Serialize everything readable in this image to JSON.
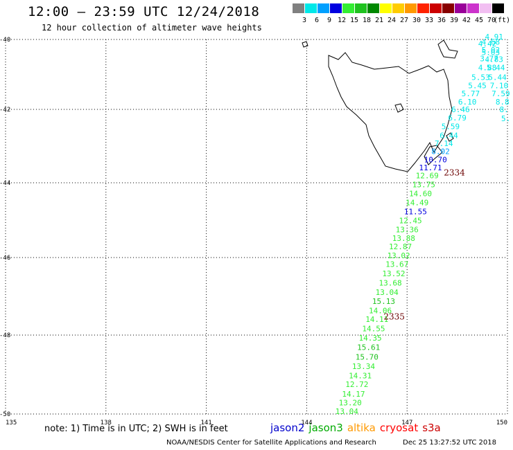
{
  "header": {
    "title": "12:00 – 23:59 UTC 12/24/2018",
    "subtitle": "12 hour collection of altimeter wave heights"
  },
  "legend": {
    "unit": "(ft)",
    "bins": [
      {
        "label": "3",
        "color": "#808080"
      },
      {
        "label": "6",
        "color": "#00e8e8"
      },
      {
        "label": "9",
        "color": "#00a0ff"
      },
      {
        "label": "12",
        "color": "#0000e0"
      },
      {
        "label": "15",
        "color": "#33ee33"
      },
      {
        "label": "18",
        "color": "#1fc21f"
      },
      {
        "label": "21",
        "color": "#008800"
      },
      {
        "label": "24",
        "color": "#ffff00"
      },
      {
        "label": "27",
        "color": "#ffcc00"
      },
      {
        "label": "30",
        "color": "#ff9900"
      },
      {
        "label": "33",
        "color": "#ff2200"
      },
      {
        "label": "36",
        "color": "#cc0000"
      },
      {
        "label": "39",
        "color": "#880000"
      },
      {
        "label": "42",
        "color": "#990099"
      },
      {
        "label": "45",
        "color": "#cc33cc"
      },
      {
        "label": "70",
        "color": "#f2bff2"
      },
      {
        "label": "",
        "color": "#000000"
      }
    ]
  },
  "axes": {
    "lat_labels": [
      "-40",
      "-42",
      "-44",
      "-46",
      "-48",
      "-50"
    ],
    "lon_labels": [
      "135",
      "138",
      "141",
      "144",
      "147",
      "150"
    ]
  },
  "passes": [
    {
      "id": "2334",
      "lat": -43.8,
      "lon": 148.1
    },
    {
      "id": "2335",
      "lat": -47.6,
      "lon": 146.3
    }
  ],
  "tracks": {
    "eastern": [
      {
        "v": "4.91",
        "lat": -39.98,
        "lon": 149.6,
        "c": "#00e8e8"
      },
      {
        "v": "4.68",
        "lat": -40.15,
        "lon": 149.5,
        "c": "#00e8e8"
      },
      {
        "v": "4.42",
        "lat": -40.2,
        "lon": 149.4,
        "c": "#00e8e8"
      },
      {
        "v": "5.02",
        "lat": -40.38,
        "lon": 149.5,
        "c": "#00e8e8"
      },
      {
        "v": "5.03",
        "lat": -40.45,
        "lon": 149.5,
        "c": "#00e8e8"
      },
      {
        "v": "3.77",
        "lat": -40.62,
        "lon": 149.45,
        "c": "#00e8e8"
      },
      {
        "v": "4.83",
        "lat": -40.64,
        "lon": 149.6,
        "c": "#00e8e8"
      },
      {
        "v": "4.88",
        "lat": -40.88,
        "lon": 149.4,
        "c": "#00e8e8"
      },
      {
        "v": "5.44",
        "lat": -40.88,
        "lon": 149.65,
        "c": "#00e8e8"
      },
      {
        "v": "5.53",
        "lat": -41.16,
        "lon": 149.2,
        "c": "#00e8e8"
      },
      {
        "v": "5.44",
        "lat": -41.16,
        "lon": 149.7,
        "c": "#00e8e8"
      },
      {
        "v": "5.45",
        "lat": -41.4,
        "lon": 149.1,
        "c": "#00e8e8"
      },
      {
        "v": "7.10",
        "lat": -41.4,
        "lon": 149.75,
        "c": "#00e8e8"
      },
      {
        "v": "5.77",
        "lat": -41.62,
        "lon": 148.9,
        "c": "#00e8e8"
      },
      {
        "v": "7.59",
        "lat": -41.62,
        "lon": 149.8,
        "c": "#00e8e8"
      },
      {
        "v": "6.10",
        "lat": -41.86,
        "lon": 148.8,
        "c": "#00e8e8"
      },
      {
        "v": "8.8",
        "lat": -41.86,
        "lon": 149.85,
        "c": "#00e8e8"
      },
      {
        "v": "6.46",
        "lat": -42.08,
        "lon": 148.6,
        "c": "#00e8e8"
      },
      {
        "v": "8.",
        "lat": -42.08,
        "lon": 149.9,
        "c": "#00e8e8"
      },
      {
        "v": "6.79",
        "lat": -42.3,
        "lon": 148.5,
        "c": "#00e8e8"
      },
      {
        "v": "5.",
        "lat": -42.32,
        "lon": 149.95,
        "c": "#00e8e8"
      },
      {
        "v": "5.59",
        "lat": -42.54,
        "lon": 148.3,
        "c": "#00e8e8"
      },
      {
        "v": "6.44",
        "lat": -42.78,
        "lon": 148.25,
        "c": "#00e8e8"
      },
      {
        "v": "7.14",
        "lat": -43.0,
        "lon": 148.1,
        "c": "#00e8e8"
      },
      {
        "v": "8.02",
        "lat": -43.22,
        "lon": 148.0,
        "c": "#00a0ff"
      },
      {
        "v": "10.70",
        "lat": -43.44,
        "lon": 147.85,
        "c": "#0000e0"
      },
      {
        "v": "11.71",
        "lat": -43.66,
        "lon": 147.7,
        "c": "#0000e0"
      }
    ],
    "western": [
      {
        "v": "12.69",
        "lat": -43.88,
        "lon": 147.6,
        "c": "#33ee33"
      },
      {
        "v": "13.75",
        "lat": -44.12,
        "lon": 147.5,
        "c": "#33ee33"
      },
      {
        "v": "14.60",
        "lat": -44.36,
        "lon": 147.4,
        "c": "#33ee33"
      },
      {
        "v": "14.49",
        "lat": -44.6,
        "lon": 147.3,
        "c": "#33ee33"
      },
      {
        "v": "11.55",
        "lat": -44.84,
        "lon": 147.25,
        "c": "#0000e0"
      },
      {
        "v": "12.45",
        "lat": -45.08,
        "lon": 147.1,
        "c": "#33ee33"
      },
      {
        "v": "13.36",
        "lat": -45.32,
        "lon": 147.0,
        "c": "#33ee33"
      },
      {
        "v": "13.88",
        "lat": -45.56,
        "lon": 146.9,
        "c": "#33ee33"
      },
      {
        "v": "12.87",
        "lat": -45.78,
        "lon": 146.8,
        "c": "#33ee33"
      },
      {
        "v": "13.02",
        "lat": -46.02,
        "lon": 146.75,
        "c": "#33ee33"
      },
      {
        "v": "13.67",
        "lat": -46.24,
        "lon": 146.7,
        "c": "#33ee33"
      },
      {
        "v": "13.52",
        "lat": -46.48,
        "lon": 146.6,
        "c": "#33ee33"
      },
      {
        "v": "13.68",
        "lat": -46.72,
        "lon": 146.5,
        "c": "#33ee33"
      },
      {
        "v": "13.04",
        "lat": -46.96,
        "lon": 146.4,
        "c": "#33ee33"
      },
      {
        "v": "15.13",
        "lat": -47.2,
        "lon": 146.3,
        "c": "#1fc21f"
      },
      {
        "v": "14.06",
        "lat": -47.44,
        "lon": 146.2,
        "c": "#33ee33"
      },
      {
        "v": "14.11",
        "lat": -47.66,
        "lon": 146.1,
        "c": "#33ee33"
      },
      {
        "v": "14.55",
        "lat": -47.9,
        "lon": 146.0,
        "c": "#33ee33"
      },
      {
        "v": "14.35",
        "lat": -48.14,
        "lon": 145.9,
        "c": "#33ee33"
      },
      {
        "v": "15.61",
        "lat": -48.38,
        "lon": 145.85,
        "c": "#1fc21f"
      },
      {
        "v": "15.70",
        "lat": -48.62,
        "lon": 145.8,
        "c": "#1fc21f"
      },
      {
        "v": "13.34",
        "lat": -48.86,
        "lon": 145.7,
        "c": "#33ee33"
      },
      {
        "v": "14.31",
        "lat": -49.1,
        "lon": 145.6,
        "c": "#33ee33"
      },
      {
        "v": "12.72",
        "lat": -49.32,
        "lon": 145.5,
        "c": "#33ee33"
      },
      {
        "v": "14.17",
        "lat": -49.56,
        "lon": 145.4,
        "c": "#33ee33"
      },
      {
        "v": "13.20",
        "lat": -49.78,
        "lon": 145.3,
        "c": "#33ee33"
      },
      {
        "v": "13.04",
        "lat": -50.02,
        "lon": 145.2,
        "c": "#33ee33"
      }
    ]
  },
  "footer": {
    "note": "note: 1) Time is in UTC; 2) SWH is in feet",
    "satellites": [
      {
        "name": "jason2",
        "color": "#0000cc"
      },
      {
        "name": "jason3",
        "color": "#00aa00"
      },
      {
        "name": "altika",
        "color": "#ff9900"
      },
      {
        "name": "cryosat",
        "color": "#ff0000"
      },
      {
        "name": "s3a",
        "color": "#cc0000"
      }
    ],
    "credit": "NOAA/NESDIS Center for Satellite Applications and Research",
    "timestamp": "Dec 25 13:27:52 UTC 2018"
  }
}
